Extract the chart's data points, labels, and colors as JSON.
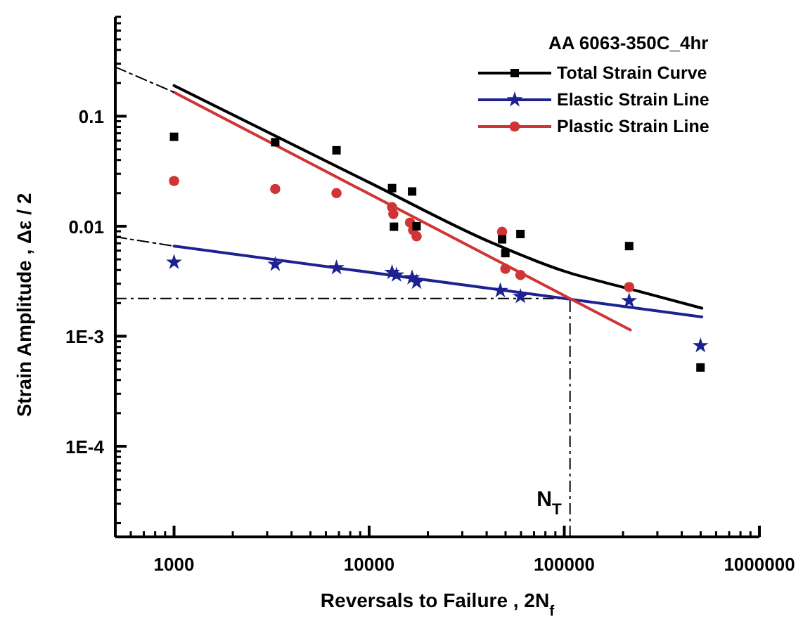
{
  "chart_data": {
    "type": "scatter",
    "xlabel": "Reversals to Failure , 2N$_{f}$",
    "ylabel": "Strain Amplitude , Δε / 2",
    "legend_title": "AA 6063-350C_4hr",
    "log": "xy",
    "legend": "top right",
    "grid": false,
    "xlim": [
      500,
      1000000
    ],
    "xticks": [
      1000,
      10000,
      100000,
      1000000
    ],
    "ylim": [
      1.5e-05,
      0.8
    ],
    "yticks": [
      {
        "value": 0.0001,
        "label": "1E-4"
      },
      {
        "value": 0.001,
        "label": "1E-3"
      },
      {
        "value": 0.01,
        "label": "0.01"
      },
      {
        "value": 0.1,
        "label": "0.1"
      }
    ],
    "series": [
      {
        "name": "Total Strain Curve",
        "marker": "square",
        "color": "#000000",
        "x": [
          1000,
          3300,
          6800,
          13100,
          13400,
          16600,
          17500,
          48000,
          49900,
          59600,
          215000,
          499000
        ],
        "values": [
          0.065,
          0.058,
          0.049,
          0.0222,
          0.0099,
          0.0207,
          0.01,
          0.0076,
          0.0057,
          0.0085,
          0.0066,
          0.00052
        ]
      },
      {
        "name": "Elastic Strain Line",
        "marker": "star",
        "color": "#1c2390",
        "x": [
          1000,
          3300,
          6800,
          13100,
          13800,
          16600,
          17500,
          47000,
          59600,
          215000,
          499000
        ],
        "values": [
          0.0047,
          0.0045,
          0.0042,
          0.0038,
          0.0036,
          0.0034,
          0.0031,
          0.0026,
          0.0023,
          0.0021,
          0.00082
        ]
      },
      {
        "name": "Plastic Strain Line",
        "marker": "circle",
        "color": "#d03535",
        "x": [
          1000,
          3300,
          6800,
          13100,
          13300,
          16200,
          16800,
          17500,
          48000,
          49900,
          59600,
          215000
        ],
        "values": [
          0.0258,
          0.0218,
          0.02,
          0.0149,
          0.0129,
          0.0108,
          0.0092,
          0.0081,
          0.0089,
          0.0041,
          0.0036,
          0.0028
        ]
      },
      {
        "type": "line",
        "color": "#000000",
        "x": [
          1000,
          10000,
          42300,
          100000,
          215000,
          507000
        ],
        "values": [
          0.19,
          0.025,
          0.0071,
          0.0039,
          0.0027,
          0.0018
        ]
      },
      {
        "type": "line",
        "color": "#1c2390",
        "x": [
          1000,
          507000
        ],
        "values": [
          0.0066,
          0.0015
        ]
      },
      {
        "type": "line",
        "color": "#d03535",
        "x": [
          1000,
          218000
        ],
        "values": [
          0.165,
          0.00114
        ]
      },
      {
        "type": "line",
        "line_style": "dashed",
        "color": "#000000",
        "x": [
          500,
          1000
        ],
        "values": [
          0.28,
          0.165
        ]
      },
      {
        "type": "line",
        "line_style": "dashed",
        "color": "#000000",
        "x": [
          500,
          1000
        ],
        "values": [
          0.008,
          0.0066
        ]
      }
    ],
    "ref_lines": [
      {
        "axis": "y",
        "value": 0.0022,
        "color": "#000000",
        "line_style": "dashed"
      },
      {
        "axis": "x",
        "value": 107000,
        "label": "N$_{T}$",
        "color": "#000000",
        "line_style": "dashed"
      }
    ]
  }
}
